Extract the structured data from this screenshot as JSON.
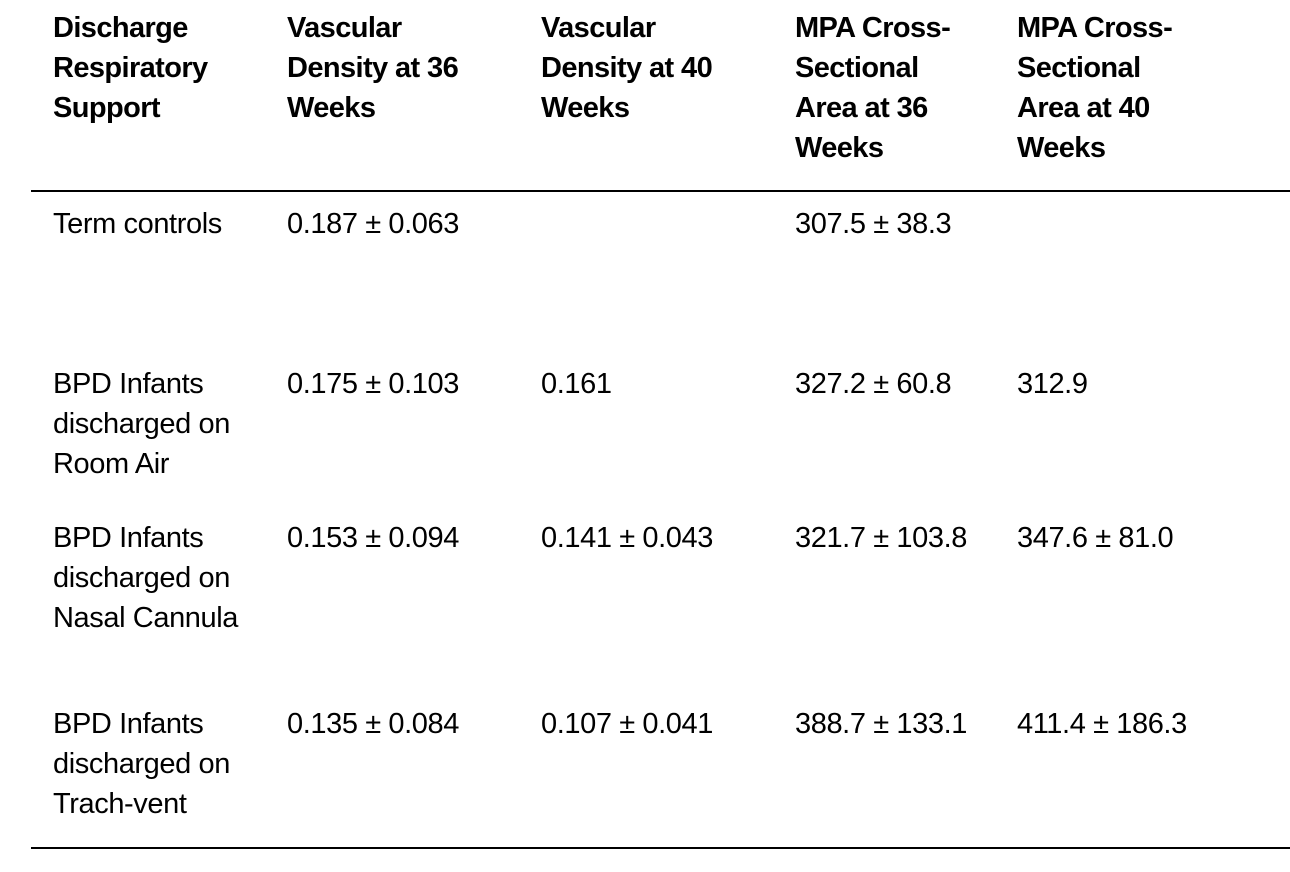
{
  "table": {
    "headers": [
      "Discharge\nRespiratory\nSupport",
      "Vascular\nDensity at 36\nWeeks",
      "Vascular\nDensity at 40\nWeeks",
      "MPA Cross-\nSectional\nArea at 36\nWeeks",
      "MPA Cross-\nSectional\nArea at 40\nWeeks"
    ],
    "rows": [
      {
        "group": "Term controls",
        "vd36": "0.187 ± 0.063",
        "vd40": "",
        "mpa36": "307.5 ± 38.3",
        "mpa40": ""
      },
      {
        "group": "BPD Infants\ndischarged on\nRoom Air",
        "vd36": "0.175 ± 0.103",
        "vd40": "0.161",
        "mpa36": "327.2 ± 60.8",
        "mpa40": "312.9"
      },
      {
        "group": "BPD Infants\ndischarged on\nNasal Cannula",
        "vd36": "0.153 ± 0.094",
        "vd40": "0.141 ± 0.043",
        "mpa36": "321.7 ± 103.8",
        "mpa40": "347.6 ± 81.0"
      },
      {
        "group": "BPD Infants\ndischarged on\nTrach-vent",
        "vd36": "0.135 ± 0.084",
        "vd40": "0.107 ± 0.041",
        "mpa36": "388.7 ± 133.1",
        "mpa40": "411.4 ± 186.3"
      }
    ]
  }
}
